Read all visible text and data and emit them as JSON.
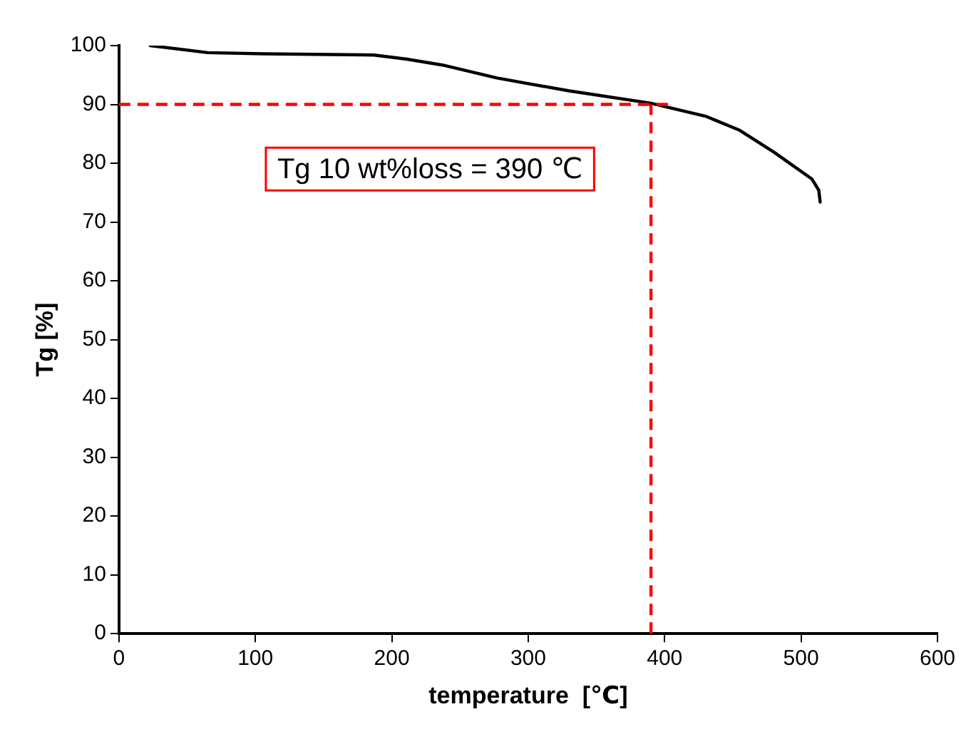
{
  "chart_data": {
    "type": "line",
    "xlabel": "temperature  [℃]",
    "ylabel": "Tg [%]",
    "x": [
      23,
      65,
      106,
      187,
      211,
      237,
      277,
      330,
      390,
      430,
      455,
      480,
      508,
      513,
      514
    ],
    "series": [
      {
        "color": "#000000",
        "values": [
          100,
          98.8,
          98.6,
          98.4,
          97.7,
          96.7,
          94.5,
          92.3,
          90.2,
          88,
          85.6,
          81.9,
          77.3,
          75.4,
          73.4
        ]
      }
    ],
    "xlim": [
      0,
      600
    ],
    "xticks": [
      0,
      100,
      200,
      300,
      400,
      500,
      600
    ],
    "ylim": [
      0,
      100
    ],
    "yticks": [
      0,
      10,
      20,
      30,
      40,
      50,
      60,
      70,
      80,
      90,
      100
    ],
    "grid": false,
    "legend": false,
    "marker": "none",
    "line_style": "solid",
    "ref_lines": [
      {
        "axis": "y",
        "value": 90,
        "color": "#ff0000",
        "line_style": "dashed"
      },
      {
        "axis": "x",
        "value": 390,
        "color": "#ff0000",
        "line_style": "dashed"
      }
    ],
    "annotations": [
      "Tg 10 wt%loss = 390 ℃"
    ]
  }
}
